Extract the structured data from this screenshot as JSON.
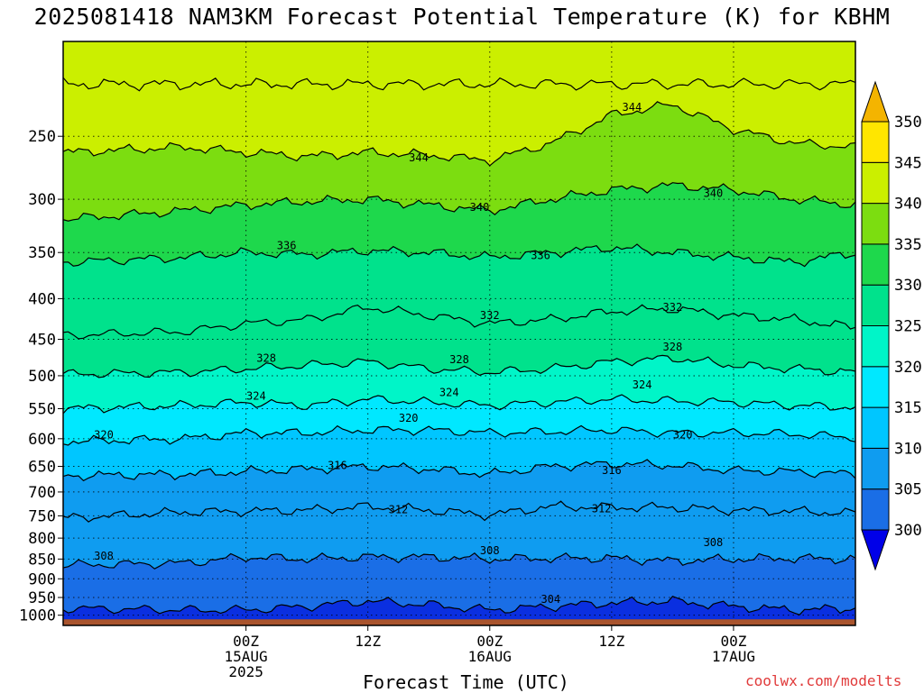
{
  "title": "2025081418 NAM3KM Forecast Potential Temperature (K) for KBHM",
  "credit": "coolwx.com/modelts",
  "chart_data": {
    "type": "heatmap",
    "title": "2025081418 NAM3KM Forecast Potential Temperature (K) for KBHM",
    "xlabel": "Forecast Time (UTC)",
    "ylabel": "",
    "y_scale": "log-pressure (hPa), inverted",
    "ylim": [
      1030,
      190
    ],
    "y_ticks": [
      250,
      300,
      350,
      400,
      450,
      500,
      550,
      600,
      650,
      700,
      750,
      800,
      850,
      900,
      950,
      1000
    ],
    "x_hours": [
      -18,
      60
    ],
    "x_ticks": [
      {
        "hour": 0,
        "lines": [
          "00Z",
          "15AUG",
          "2025"
        ]
      },
      {
        "hour": 12,
        "lines": [
          "12Z"
        ]
      },
      {
        "hour": 24,
        "lines": [
          "00Z",
          "16AUG"
        ]
      },
      {
        "hour": 36,
        "lines": [
          "12Z"
        ]
      },
      {
        "hour": 48,
        "lines": [
          "00Z",
          "17AUG"
        ]
      }
    ],
    "grid": true,
    "colorbar": {
      "levels": [
        300,
        305,
        310,
        315,
        320,
        325,
        330,
        335,
        340,
        345,
        350
      ],
      "colors": [
        "#0a2fe0",
        "#1a6ee6",
        "#0f9cf0",
        "#00c6ff",
        "#00e8ff",
        "#00f5c8",
        "#00e28c",
        "#1ed84c",
        "#7cdd10",
        "#cbef00",
        "#ffe600",
        "#f4b400"
      ],
      "under_color": "#0000e8",
      "over_color": "#f4b400",
      "placement": "right"
    },
    "terrain_color": "#a9542d",
    "contour_interval": 4,
    "isentropes_K": [
      304,
      308,
      312,
      316,
      320,
      324,
      328,
      332,
      336,
      340,
      344
    ],
    "isentrope_pressure_hPa": {
      "hours": [
        -18,
        -6,
        0,
        6,
        12,
        18,
        24,
        30,
        36,
        42,
        48,
        54,
        60
      ],
      "304": [
        980,
        985,
        985,
        975,
        960,
        970,
        985,
        975,
        965,
        960,
        975,
        985,
        980
      ],
      "308": [
        865,
        860,
        845,
        850,
        845,
        845,
        850,
        848,
        848,
        855,
        850,
        848,
        850
      ],
      "312": [
        755,
        742,
        740,
        738,
        730,
        738,
        748,
        730,
        732,
        732,
        738,
        740,
        745
      ],
      "316": [
        668,
        665,
        660,
        655,
        650,
        655,
        665,
        650,
        645,
        648,
        658,
        660,
        665
      ],
      "320": [
        605,
        600,
        590,
        590,
        585,
        585,
        590,
        588,
        585,
        590,
        590,
        592,
        598
      ],
      "324": [
        550,
        545,
        540,
        545,
        535,
        540,
        545,
        540,
        535,
        538,
        540,
        545,
        548
      ],
      "328": [
        498,
        495,
        490,
        485,
        480,
        490,
        495,
        490,
        480,
        475,
        485,
        490,
        495
      ],
      "332": [
        445,
        440,
        430,
        425,
        410,
        420,
        430,
        425,
        415,
        412,
        420,
        425,
        435
      ],
      "336": [
        360,
        355,
        350,
        352,
        348,
        350,
        355,
        350,
        345,
        350,
        355,
        360,
        350
      ],
      "340": [
        318,
        310,
        305,
        302,
        300,
        305,
        310,
        300,
        292,
        288,
        292,
        300,
        305
      ],
      "344": [
        262,
        258,
        262,
        265,
        262,
        264,
        268,
        255,
        235,
        228,
        245,
        255,
        258
      ]
    },
    "contour_labels": [
      {
        "value": 308,
        "hour": -14,
        "p": 843
      },
      {
        "value": 312,
        "hour": 15,
        "p": 737
      },
      {
        "value": 312,
        "hour": 35,
        "p": 735
      },
      {
        "value": 308,
        "hour": 24,
        "p": 830
      },
      {
        "value": 308,
        "hour": 46,
        "p": 810
      },
      {
        "value": 304,
        "hour": 30,
        "p": 955
      },
      {
        "value": 316,
        "hour": 9,
        "p": 648
      },
      {
        "value": 316,
        "hour": 36,
        "p": 658
      },
      {
        "value": 320,
        "hour": -14,
        "p": 593
      },
      {
        "value": 320,
        "hour": 16,
        "p": 565
      },
      {
        "value": 320,
        "hour": 43,
        "p": 593
      },
      {
        "value": 324,
        "hour": 1,
        "p": 530
      },
      {
        "value": 324,
        "hour": 20,
        "p": 525
      },
      {
        "value": 324,
        "hour": 39,
        "p": 513
      },
      {
        "value": 328,
        "hour": 2,
        "p": 475
      },
      {
        "value": 328,
        "hour": 21,
        "p": 477
      },
      {
        "value": 328,
        "hour": 42,
        "p": 460
      },
      {
        "value": 332,
        "hour": 24,
        "p": 420
      },
      {
        "value": 332,
        "hour": 42,
        "p": 410
      },
      {
        "value": 336,
        "hour": 4,
        "p": 343
      },
      {
        "value": 336,
        "hour": 29,
        "p": 353
      },
      {
        "value": 340,
        "hour": 23,
        "p": 307
      },
      {
        "value": 340,
        "hour": 46,
        "p": 295
      },
      {
        "value": 344,
        "hour": 17,
        "p": 266
      },
      {
        "value": 344,
        "hour": 38,
        "p": 230
      }
    ]
  }
}
